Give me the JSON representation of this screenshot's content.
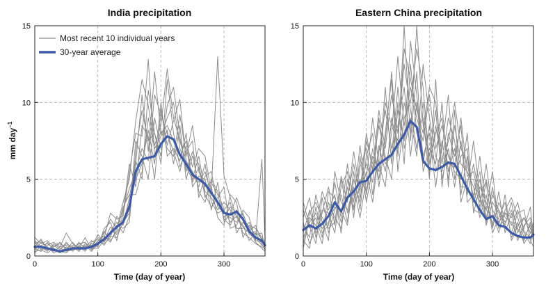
{
  "ylabel": "mm day",
  "ylabel_exp": "−1",
  "legend": {
    "individual_label": "Most recent 10 individual years",
    "average_label": "30-year average",
    "placement": "top-left of first panel"
  },
  "colors": {
    "individual": "#8c8c8c",
    "average": "#3d5aa8",
    "grid": "#a8a8a8",
    "frame": "#222222"
  },
  "chart_data": [
    {
      "type": "line",
      "title": "India precipitation",
      "xlabel": "Time (day of year)",
      "ylabel": "mm day⁻¹",
      "xlim": [
        0,
        365
      ],
      "ylim": [
        0,
        15
      ],
      "xticks": [
        0,
        100,
        200,
        300
      ],
      "yticks": [
        0,
        5,
        10,
        15
      ],
      "grid": true,
      "series": [
        {
          "name": "30-year average",
          "x": [
            0,
            10,
            20,
            30,
            40,
            50,
            60,
            70,
            80,
            90,
            100,
            110,
            120,
            130,
            140,
            150,
            160,
            170,
            180,
            190,
            200,
            210,
            220,
            230,
            240,
            250,
            260,
            270,
            280,
            290,
            300,
            310,
            320,
            330,
            340,
            350,
            360,
            365
          ],
          "values": [
            0.6,
            0.6,
            0.5,
            0.4,
            0.3,
            0.4,
            0.5,
            0.5,
            0.5,
            0.6,
            0.8,
            1.1,
            1.5,
            1.9,
            2.2,
            3.2,
            5.5,
            6.3,
            6.4,
            6.5,
            7.3,
            7.8,
            7.6,
            6.6,
            6.0,
            5.3,
            5.0,
            4.7,
            4.1,
            3.5,
            2.8,
            2.7,
            2.9,
            2.4,
            1.6,
            1.2,
            1.0,
            0.7
          ]
        }
      ],
      "individual_years": [
        [
          1.2,
          0.8,
          1.0,
          0.6,
          0.9,
          0.4,
          0.5,
          0.8,
          0.6,
          1.0,
          0.7,
          1.5,
          2.4,
          1.8,
          3.5,
          5.0,
          8.8,
          11.5,
          9.8,
          7.2,
          8.5,
          12.2,
          9.0,
          7.5,
          6.0,
          5.2,
          4.8,
          5.5,
          4.0,
          3.6,
          2.5,
          3.2,
          2.8,
          1.5,
          1.2,
          0.8,
          0.6,
          0.5
        ],
        [
          0.3,
          0.4,
          0.2,
          0.5,
          0.3,
          0.2,
          0.6,
          0.4,
          0.7,
          0.3,
          0.9,
          0.8,
          1.2,
          2.6,
          2.0,
          3.8,
          6.2,
          5.0,
          10.8,
          8.0,
          6.5,
          9.8,
          11.0,
          7.8,
          5.5,
          6.8,
          4.2,
          3.5,
          5.0,
          4.2,
          3.0,
          2.2,
          2.6,
          2.0,
          1.0,
          1.5,
          0.8,
          0.4
        ],
        [
          0.8,
          1.0,
          0.5,
          0.3,
          0.6,
          1.5,
          0.8,
          0.5,
          1.2,
          0.4,
          1.0,
          1.3,
          0.9,
          1.8,
          3.0,
          4.4,
          5.5,
          7.0,
          6.2,
          10.5,
          9.2,
          8.0,
          6.8,
          5.5,
          7.2,
          4.8,
          5.8,
          4.0,
          3.2,
          3.8,
          4.5,
          1.8,
          2.0,
          3.0,
          2.5,
          1.0,
          6.3,
          1.2
        ],
        [
          0.5,
          0.3,
          0.9,
          0.4,
          0.2,
          0.6,
          0.3,
          0.7,
          0.4,
          0.8,
          0.6,
          1.8,
          2.2,
          1.0,
          2.8,
          6.0,
          4.5,
          8.5,
          7.8,
          5.0,
          9.5,
          7.2,
          8.8,
          10.2,
          6.2,
          5.5,
          4.5,
          6.0,
          3.5,
          2.8,
          3.0,
          3.5,
          1.5,
          2.2,
          1.8,
          0.9,
          0.5,
          0.3
        ],
        [
          1.0,
          0.6,
          0.3,
          0.8,
          0.5,
          0.3,
          0.4,
          0.9,
          0.5,
          0.6,
          1.4,
          0.9,
          1.6,
          2.2,
          1.5,
          2.6,
          7.5,
          6.5,
          5.0,
          9.0,
          7.0,
          8.2,
          6.0,
          8.5,
          5.0,
          6.5,
          6.0,
          3.8,
          4.5,
          2.5,
          2.0,
          4.0,
          3.5,
          1.2,
          2.0,
          1.8,
          1.2,
          0.8
        ],
        [
          0.4,
          0.9,
          0.6,
          0.2,
          0.4,
          0.8,
          0.6,
          0.3,
          0.8,
          0.5,
          0.5,
          1.0,
          1.9,
          1.4,
          2.4,
          3.4,
          5.0,
          6.0,
          8.2,
          6.0,
          10.0,
          6.5,
          7.0,
          6.2,
          8.0,
          4.5,
          5.2,
          5.0,
          3.0,
          4.8,
          2.2,
          2.8,
          3.8,
          2.6,
          1.4,
          1.2,
          0.7,
          0.6
        ],
        [
          0.7,
          0.5,
          0.4,
          0.6,
          0.8,
          0.5,
          0.7,
          0.6,
          0.3,
          0.9,
          1.1,
          0.7,
          1.4,
          2.0,
          1.8,
          2.2,
          6.8,
          9.5,
          7.5,
          8.0,
          6.0,
          11.5,
          8.0,
          5.8,
          6.8,
          7.5,
          3.8,
          5.2,
          5.5,
          3.2,
          2.8,
          2.5,
          2.2,
          2.8,
          1.6,
          2.0,
          1.0,
          0.7
        ],
        [
          0.2,
          0.7,
          0.8,
          0.5,
          0.3,
          0.4,
          0.9,
          0.4,
          0.6,
          0.7,
          0.8,
          1.6,
          1.0,
          1.6,
          3.2,
          4.0,
          4.0,
          5.5,
          9.0,
          7.0,
          7.8,
          9.0,
          10.0,
          7.0,
          5.8,
          5.0,
          6.5,
          4.2,
          3.8,
          3.0,
          3.5,
          3.0,
          1.8,
          1.8,
          2.2,
          1.0,
          0.9,
          0.9
        ],
        [
          0.9,
          0.4,
          0.7,
          0.9,
          0.6,
          0.7,
          0.5,
          0.8,
          0.9,
          0.4,
          0.7,
          1.2,
          2.8,
          2.4,
          2.6,
          5.5,
          8.0,
          7.8,
          12.8,
          6.5,
          8.2,
          7.0,
          6.5,
          9.2,
          6.5,
          8.5,
          5.5,
          4.5,
          4.8,
          4.0,
          2.4,
          2.0,
          3.0,
          2.4,
          1.9,
          1.4,
          1.5,
          0.5
        ],
        [
          0.6,
          1.1,
          0.4,
          0.7,
          0.4,
          0.9,
          0.4,
          0.6,
          0.5,
          0.6,
          1.2,
          1.0,
          1.3,
          1.2,
          2.2,
          2.8,
          6.0,
          10.5,
          6.8,
          12.0,
          8.0,
          8.5,
          7.5,
          6.5,
          7.5,
          5.8,
          7.0,
          6.5,
          4.2,
          13.0,
          5.2,
          3.8,
          2.5,
          1.9,
          1.5,
          1.6,
          1.1,
          1.0
        ]
      ]
    },
    {
      "type": "line",
      "title": "Eastern China precipitation",
      "xlabel": "Time (day of year)",
      "ylabel": "",
      "xlim": [
        0,
        365
      ],
      "ylim": [
        0,
        15
      ],
      "xticks": [
        0,
        100,
        200,
        300
      ],
      "yticks": [
        0,
        5,
        10,
        15
      ],
      "grid": true,
      "series": [
        {
          "name": "30-year average",
          "x": [
            0,
            10,
            20,
            30,
            40,
            50,
            60,
            70,
            80,
            90,
            100,
            110,
            120,
            130,
            140,
            150,
            160,
            170,
            180,
            190,
            200,
            210,
            220,
            230,
            240,
            250,
            260,
            270,
            280,
            290,
            300,
            310,
            320,
            330,
            340,
            350,
            360,
            365
          ],
          "values": [
            1.7,
            2.0,
            1.8,
            2.1,
            2.6,
            3.5,
            2.9,
            3.8,
            4.2,
            4.8,
            4.9,
            5.5,
            6.0,
            6.3,
            6.6,
            7.3,
            7.9,
            8.8,
            8.4,
            6.2,
            5.7,
            5.6,
            5.8,
            6.1,
            6.0,
            5.2,
            4.4,
            3.7,
            3.0,
            2.4,
            2.6,
            2.0,
            1.9,
            1.5,
            1.3,
            1.2,
            1.2,
            1.4
          ]
        }
      ],
      "individual_years": [
        [
          2.5,
          3.8,
          1.2,
          2.8,
          4.5,
          2.0,
          5.2,
          3.5,
          6.8,
          4.2,
          8.0,
          5.5,
          9.5,
          7.0,
          10.5,
          8.0,
          12.5,
          9.5,
          7.0,
          10.0,
          5.5,
          8.5,
          6.0,
          9.0,
          7.5,
          4.0,
          6.5,
          3.5,
          5.0,
          2.5,
          4.0,
          3.0,
          2.0,
          3.5,
          1.5,
          2.5,
          1.8,
          1.0
        ],
        [
          1.0,
          0.5,
          3.2,
          1.5,
          2.0,
          4.8,
          2.5,
          6.0,
          3.5,
          7.2,
          4.0,
          6.5,
          5.5,
          11.0,
          6.0,
          9.5,
          7.5,
          14.0,
          10.5,
          6.5,
          8.0,
          4.5,
          7.5,
          5.0,
          8.5,
          6.0,
          5.5,
          4.5,
          2.5,
          4.0,
          1.5,
          2.5,
          3.5,
          1.2,
          2.2,
          0.8,
          1.5,
          2.2
        ],
        [
          3.5,
          2.0,
          0.8,
          3.8,
          1.5,
          3.0,
          4.0,
          2.2,
          5.5,
          3.0,
          6.5,
          8.0,
          4.5,
          7.5,
          12.0,
          6.5,
          10.0,
          8.0,
          15.0,
          8.5,
          6.5,
          9.5,
          5.0,
          7.0,
          4.5,
          7.5,
          4.0,
          6.0,
          3.8,
          3.0,
          5.5,
          1.8,
          2.8,
          2.0,
          3.0,
          1.5,
          0.8,
          1.8
        ],
        [
          0.5,
          2.5,
          2.0,
          0.8,
          3.5,
          2.5,
          1.8,
          4.5,
          3.0,
          5.8,
          7.0,
          4.0,
          7.2,
          5.5,
          8.0,
          13.0,
          8.5,
          11.0,
          9.0,
          7.5,
          10.5,
          7.0,
          8.5,
          6.5,
          5.5,
          5.0,
          8.0,
          2.8,
          4.5,
          3.5,
          2.0,
          4.2,
          1.5,
          2.8,
          1.0,
          2.0,
          2.5,
          0.8
        ],
        [
          2.0,
          1.2,
          4.0,
          2.2,
          1.0,
          5.5,
          3.5,
          3.0,
          4.5,
          2.5,
          5.0,
          9.0,
          6.0,
          4.5,
          9.0,
          7.0,
          15.0,
          7.5,
          12.0,
          5.5,
          7.0,
          6.0,
          10.0,
          4.5,
          9.5,
          3.5,
          5.0,
          5.0,
          3.2,
          6.0,
          2.8,
          1.5,
          3.0,
          3.8,
          2.5,
          1.2,
          2.0,
          1.5
        ],
        [
          1.5,
          3.0,
          1.5,
          3.0,
          2.8,
          1.5,
          4.5,
          5.5,
          2.5,
          6.5,
          3.5,
          5.8,
          8.5,
          6.5,
          5.0,
          10.0,
          6.0,
          12.5,
          8.0,
          9.0,
          5.0,
          11.5,
          4.5,
          8.0,
          6.5,
          8.5,
          3.5,
          4.0,
          5.5,
          2.0,
          3.5,
          2.8,
          1.8,
          1.5,
          2.8,
          3.0,
          1.0,
          0.6
        ],
        [
          3.0,
          1.8,
          2.5,
          1.2,
          4.2,
          3.8,
          2.2,
          3.8,
          6.0,
          3.8,
          5.5,
          3.5,
          6.8,
          9.5,
          7.0,
          8.5,
          11.0,
          6.5,
          10.0,
          6.0,
          8.5,
          5.5,
          7.0,
          10.5,
          5.0,
          6.5,
          7.0,
          3.0,
          2.8,
          4.8,
          1.8,
          3.5,
          2.5,
          2.2,
          1.2,
          1.8,
          3.2,
          1.2
        ],
        [
          0.8,
          2.8,
          3.5,
          2.5,
          1.8,
          2.2,
          5.0,
          2.8,
          4.0,
          5.0,
          4.2,
          7.0,
          5.0,
          8.0,
          11.5,
          5.5,
          9.0,
          10.0,
          13.5,
          11.0,
          6.0,
          8.0,
          9.0,
          5.5,
          7.0,
          4.5,
          4.5,
          7.5,
          4.0,
          2.2,
          4.5,
          2.0,
          4.0,
          1.0,
          2.0,
          2.5,
          1.5,
          2.0
        ],
        [
          2.2,
          0.8,
          1.8,
          4.2,
          3.0,
          4.0,
          1.5,
          5.0,
          3.2,
          4.5,
          6.0,
          4.8,
          9.0,
          6.0,
          6.5,
          11.0,
          7.0,
          9.0,
          6.5,
          12.5,
          9.0,
          6.5,
          5.5,
          7.5,
          10.0,
          7.0,
          6.0,
          3.8,
          6.5,
          3.0,
          2.5,
          3.0,
          2.2,
          3.0,
          1.8,
          1.0,
          2.2,
          1.0
        ],
        [
          1.2,
          2.2,
          2.8,
          1.8,
          2.2,
          3.2,
          3.0,
          2.0,
          5.0,
          3.5,
          7.5,
          6.0,
          5.5,
          10.0,
          8.5,
          7.5,
          13.5,
          11.5,
          9.5,
          8.0,
          11.0,
          10.0,
          6.5,
          6.0,
          5.8,
          9.0,
          5.2,
          5.5,
          3.5,
          5.0,
          3.0,
          2.2,
          2.8,
          2.5,
          3.5,
          1.6,
          1.2,
          1.6
        ]
      ]
    }
  ]
}
